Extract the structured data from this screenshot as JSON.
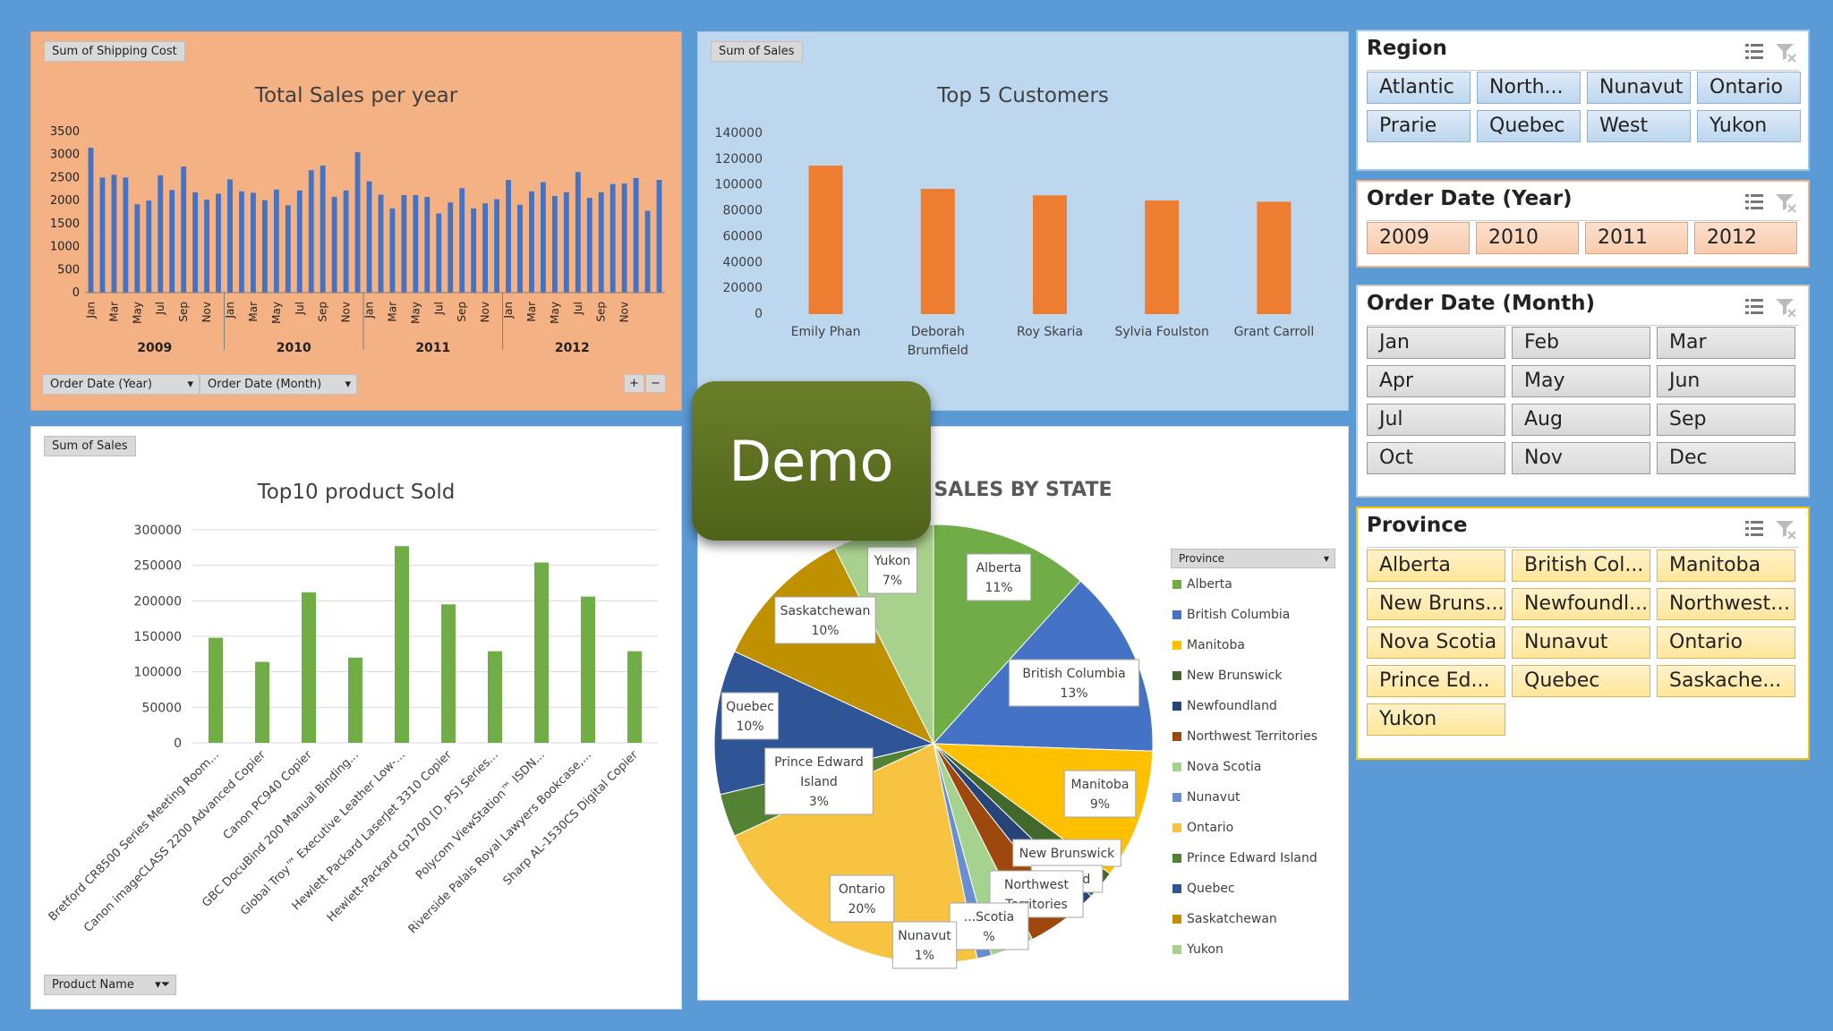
{
  "colors": {
    "background": "#5b9bd5",
    "orange_panel": "#f4b183",
    "blue_panel": "#bdd7ee",
    "bar_blue": "#4472c4",
    "bar_orange": "#ed7d31",
    "bar_green": "#70ad47"
  },
  "chart_data": [
    {
      "type": "bar",
      "title": "Total Sales per year",
      "field_button": "Sum of Shipping Cost",
      "filters": [
        "Order Date (Year)",
        "Order Date (Month)"
      ],
      "ytick_labels": [
        "3500",
        "3000",
        "2500",
        "2000",
        "1500",
        "1000",
        "500",
        "0"
      ],
      "ylim": [
        0,
        3500
      ],
      "month_labels": [
        "Jan",
        "Mar",
        "May",
        "Jul",
        "Sep",
        "Nov"
      ],
      "years": [
        "2009",
        "2010",
        "2011",
        "2012"
      ],
      "values": [
        3150,
        2500,
        2560,
        2500,
        1920,
        2000,
        2550,
        2230,
        2740,
        2180,
        2020,
        2150,
        2460,
        2200,
        2170,
        2010,
        2240,
        1900,
        2220,
        2660,
        2760,
        2080,
        2220,
        3050,
        2420,
        2130,
        1830,
        2120,
        2120,
        2080,
        1720,
        1960,
        2270,
        1830,
        1940,
        2030,
        2450,
        1910,
        2200,
        2400,
        2100,
        2180,
        2620,
        2060,
        2180,
        2360,
        2370,
        2490,
        1780,
        2450
      ]
    },
    {
      "type": "bar",
      "title": "Top 5 Customers",
      "field_button": "Sum of Sales",
      "ytick_labels": [
        "140000",
        "120000",
        "100000",
        "80000",
        "60000",
        "40000",
        "20000",
        "0"
      ],
      "ylim": [
        0,
        140000
      ],
      "categories": [
        [
          "Emily Phan"
        ],
        [
          "Deborah",
          "Brumfield"
        ],
        [
          "Roy Skaria"
        ],
        [
          "Sylvia Foulston"
        ],
        [
          "Grant Carroll"
        ]
      ],
      "values": [
        115000,
        97000,
        92000,
        88000,
        87000
      ]
    },
    {
      "type": "bar",
      "title": "Top10 product Sold",
      "field_button": "Sum of Sales",
      "filter_button": "Product Name",
      "ytick_labels": [
        "300000",
        "250000",
        "200000",
        "150000",
        "100000",
        "50000",
        "0"
      ],
      "ylim": [
        0,
        300000
      ],
      "categories": [
        "Bretford CR8500 Series Meeting Room...",
        "Canon imageCLASS 2200 Advanced Copier",
        "Canon PC940 Copier",
        "GBC DocuBind 200 Manual Binding...",
        "Global Troy™ Executive Leather Low-...",
        "Hewlett Packard LaserJet 3310 Copier",
        "Hewlett-Packard cp1700 [D, PS] Series...",
        "Polycom ViewStation™ ISDN...",
        "Riverside Palais Royal Lawyers Bookcase,...",
        "Sharp AL-1530CS Digital Copier"
      ],
      "values": [
        148000,
        114000,
        212000,
        120000,
        277000,
        195000,
        129000,
        254000,
        206000,
        129000
      ]
    },
    {
      "type": "pie",
      "title": "SALES BY STATE",
      "legend_title": "Province",
      "legend": [
        "Alberta",
        "British Columbia",
        "Manitoba",
        "New Brunswick",
        "Newfoundland",
        "Northwest Territories",
        "Nova Scotia",
        "Nunavut",
        "Ontario",
        "Prince Edward Island",
        "Quebec",
        "Saskatchewan",
        "Yukon"
      ],
      "slices": [
        {
          "name": "Alberta",
          "value": 11,
          "color": "#70ad47",
          "label": [
            "Alberta",
            "11%"
          ]
        },
        {
          "name": "British Columbia",
          "value": 13,
          "color": "#4472c4",
          "label": [
            "British Columbia",
            "13%"
          ]
        },
        {
          "name": "Manitoba",
          "value": 9,
          "color": "#ffc000",
          "label": [
            "Manitoba",
            "9%"
          ]
        },
        {
          "name": "New Brunswick",
          "value": 2,
          "color": "#43682b",
          "label": [
            "New Brunswick"
          ]
        },
        {
          "name": "Newfoundland",
          "value": 2,
          "color": "#264478",
          "label": [
            "...dland"
          ]
        },
        {
          "name": "Northwest Territories",
          "value": 3,
          "color": "#9e480e",
          "label": [
            "Northwest",
            "Territories"
          ]
        },
        {
          "name": "Nova Scotia",
          "value": 3,
          "color": "#a5d38f",
          "label": [
            "...Scotia",
            "%"
          ]
        },
        {
          "name": "Nunavut",
          "value": 1,
          "color": "#698ed0",
          "label": [
            "Nunavut",
            "1%"
          ]
        },
        {
          "name": "Ontario",
          "value": 20,
          "color": "#f7c341",
          "label": [
            "Ontario",
            "20%"
          ]
        },
        {
          "name": "Prince Edward Island",
          "value": 3,
          "color": "#548235",
          "label": [
            "Prince Edward",
            "Island",
            "3%"
          ]
        },
        {
          "name": "Quebec",
          "value": 10,
          "color": "#2f5597",
          "label": [
            "Quebec",
            "10%"
          ]
        },
        {
          "name": "Saskatchewan",
          "value": 10,
          "color": "#bf9000",
          "label": [
            "Saskatchewan",
            "10%"
          ]
        },
        {
          "name": "Yukon",
          "value": 7,
          "color": "#a9d18e",
          "label": [
            "Yukon",
            "7%"
          ]
        }
      ]
    }
  ],
  "slicers": {
    "region": {
      "title": "Region",
      "items": [
        "Atlantic",
        "North...",
        "Nunavut",
        "Ontario",
        "Prarie",
        "Quebec",
        "West",
        "Yukon"
      ]
    },
    "year": {
      "title": "Order Date (Year)",
      "items": [
        "2009",
        "2010",
        "2011",
        "2012"
      ]
    },
    "month": {
      "title": "Order Date (Month)",
      "items": [
        "Jan",
        "Feb",
        "Mar",
        "Apr",
        "May",
        "Jun",
        "Jul",
        "Aug",
        "Sep",
        "Oct",
        "Nov",
        "Dec"
      ]
    },
    "province": {
      "title": "Province",
      "items": [
        "Alberta",
        "British Col...",
        "Manitoba",
        "New Bruns...",
        "Newfoundl...",
        "Northwest ...",
        "Nova Scotia",
        "Nunavut",
        "Ontario",
        "Prince Ed...",
        "Quebec",
        "Saskache...",
        "Yukon"
      ]
    }
  },
  "overlay": {
    "demo_label": "Demo"
  }
}
